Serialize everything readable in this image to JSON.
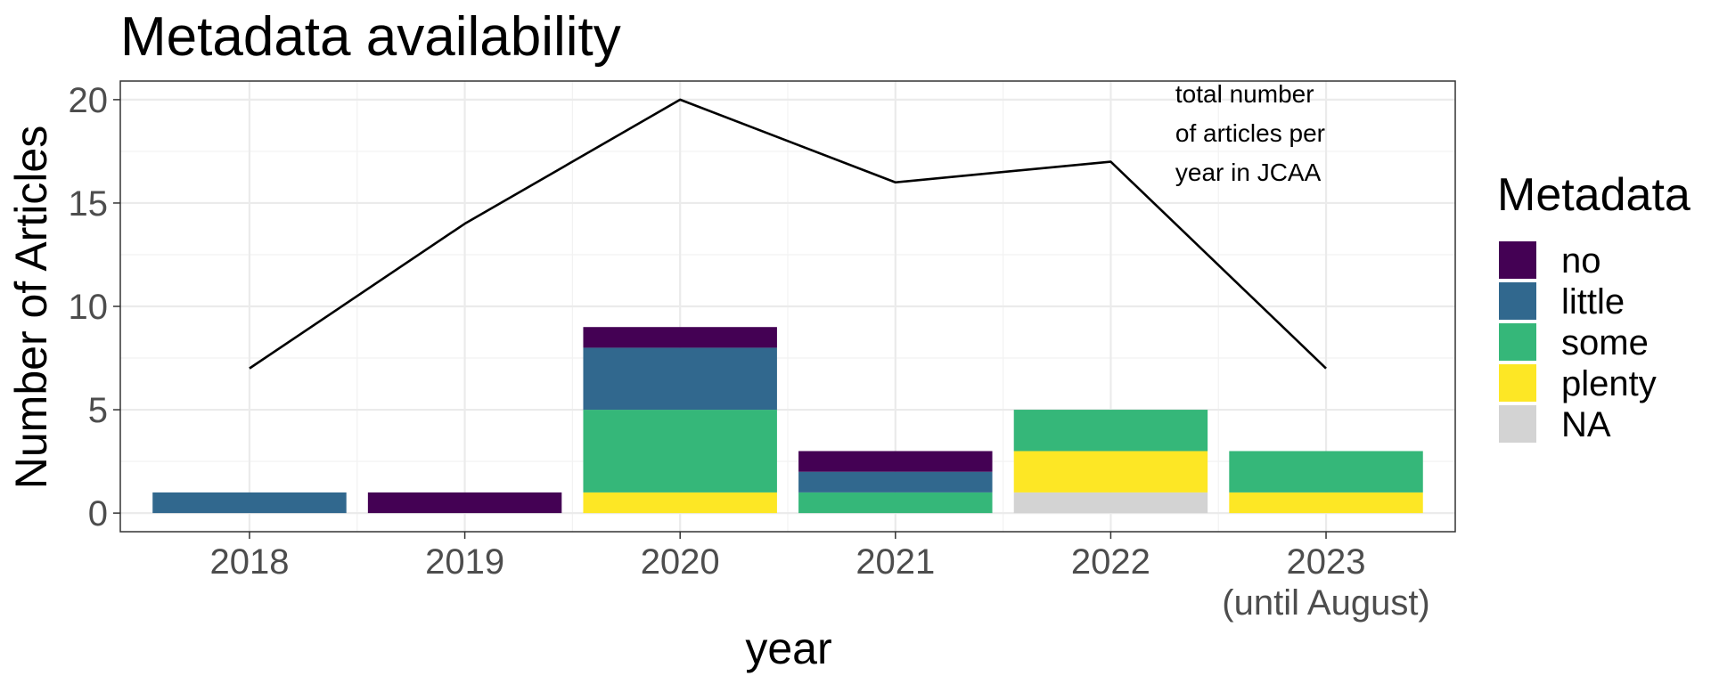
{
  "chart_data": {
    "type": "bar",
    "stacked": true,
    "title": "Metadata availability",
    "xlabel": "year",
    "ylabel": "Number of Articles",
    "ylim": [
      -0.9,
      20.9
    ],
    "yticks": [
      0,
      5,
      10,
      15,
      20
    ],
    "categories": [
      "2018",
      "2019",
      "2020",
      "2021",
      "2022",
      "2023"
    ],
    "category_sublabels": [
      "",
      "",
      "",
      "",
      "",
      "(until August)"
    ],
    "legend_title": "Metadata",
    "legend_position": "right",
    "grid": true,
    "series": [
      {
        "name": "NA",
        "color": "#d3d3d3",
        "values": [
          0,
          0,
          0,
          0,
          1,
          0
        ]
      },
      {
        "name": "plenty",
        "color": "#fde725",
        "values": [
          0,
          0,
          1,
          0,
          2,
          1
        ]
      },
      {
        "name": "some",
        "color": "#35b779",
        "values": [
          0,
          0,
          4,
          1,
          2,
          2
        ]
      },
      {
        "name": "little",
        "color": "#31688e",
        "values": [
          1,
          0,
          3,
          1,
          0,
          0
        ]
      },
      {
        "name": "no",
        "color": "#440154",
        "values": [
          0,
          1,
          1,
          1,
          0,
          0
        ]
      }
    ],
    "legend_order": [
      "no",
      "little",
      "some",
      "plenty",
      "NA"
    ],
    "line": {
      "color": "#000000",
      "values": [
        7,
        14,
        20,
        16,
        17,
        7
      ]
    },
    "annotation": {
      "lines": [
        "total number",
        "of articles per",
        "year in JCAA"
      ],
      "x_category_value": 4.3,
      "y_value": 20.3
    }
  }
}
